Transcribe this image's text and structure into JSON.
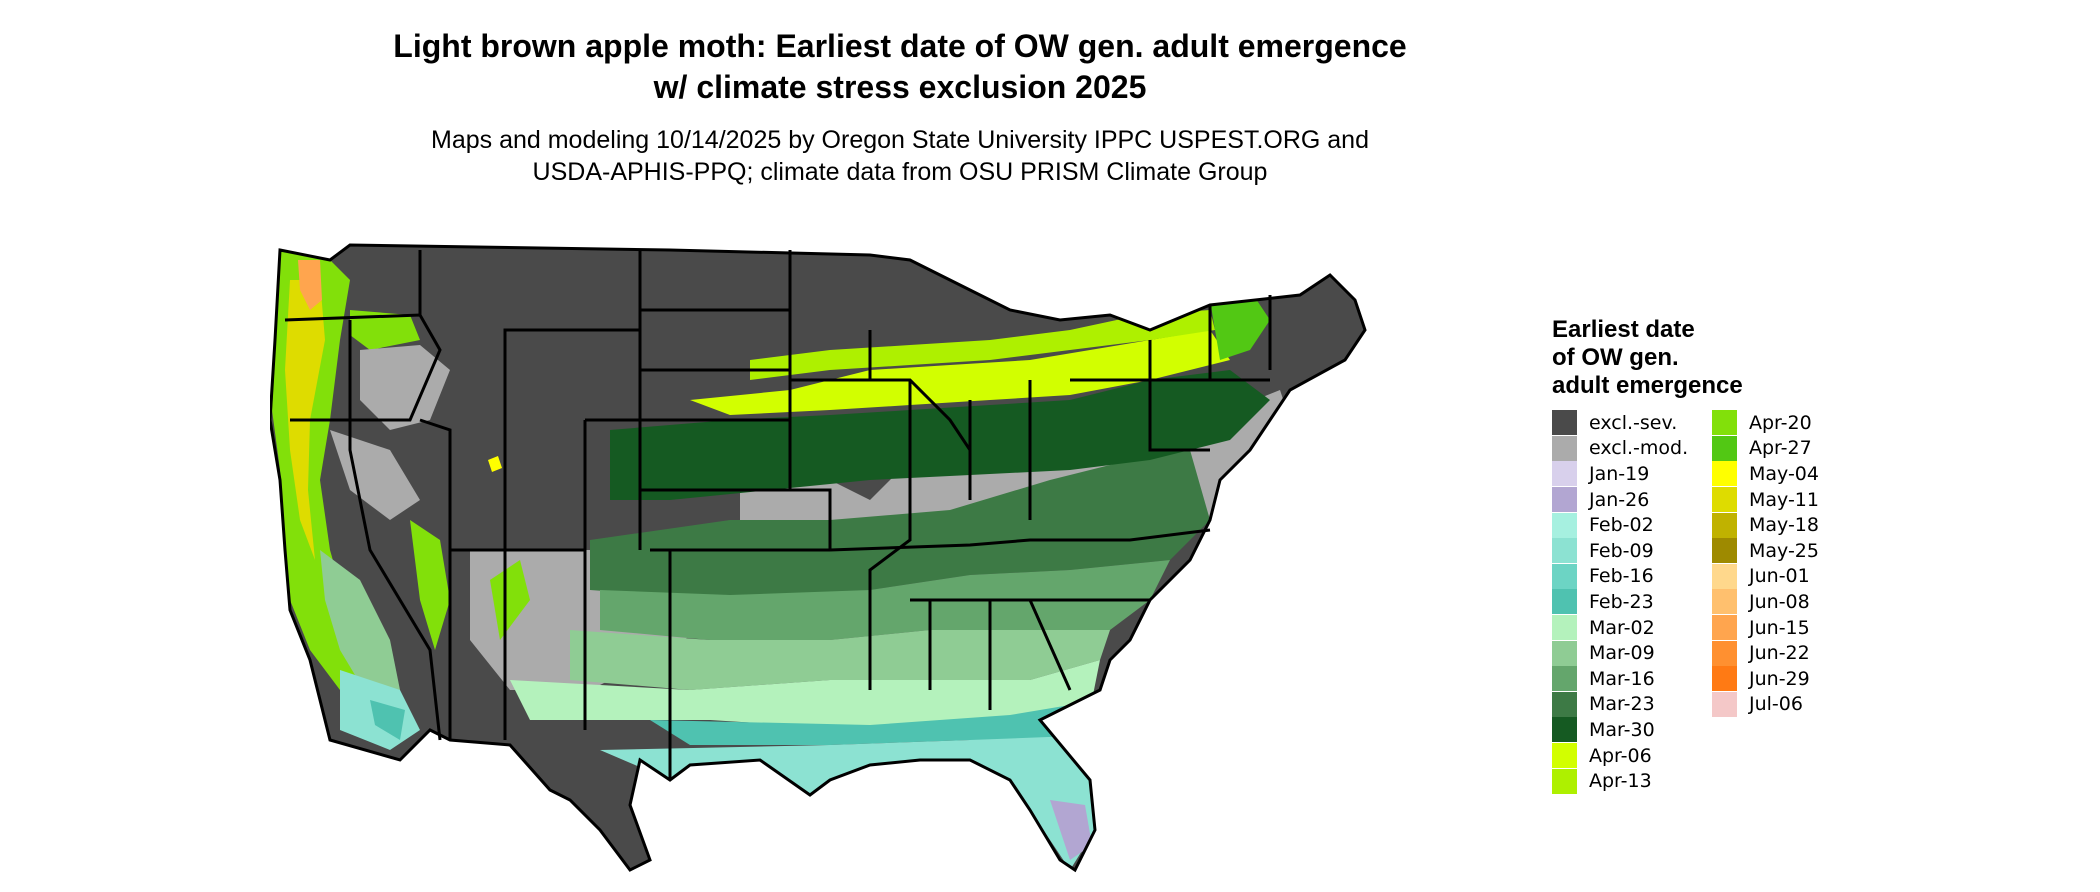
{
  "title": {
    "line1": "Light brown apple moth: Earliest date of OW gen. adult emergence",
    "line2": "w/ climate stress exclusion 2025"
  },
  "subtitle": {
    "line1": "Maps and modeling 10/14/2025 by Oregon State University IPPC USPEST.ORG and",
    "line2": "USDA-APHIS-PPQ; climate data from OSU PRISM Climate Group"
  },
  "legend": {
    "title_lines": [
      "Earliest date",
      "of OW gen.",
      "adult emergence"
    ],
    "column1": [
      {
        "label": "excl.-sev.",
        "color": "#4a4a4a"
      },
      {
        "label": "excl.-mod.",
        "color": "#ababab"
      },
      {
        "label": "Jan-19",
        "color": "#d8d0ec"
      },
      {
        "label": "Jan-26",
        "color": "#b2a6d2"
      },
      {
        "label": "Feb-02",
        "color": "#a6f0e0"
      },
      {
        "label": "Feb-09",
        "color": "#8ce2d2"
      },
      {
        "label": "Feb-16",
        "color": "#6cd4c4"
      },
      {
        "label": "Feb-23",
        "color": "#4fc2b0"
      },
      {
        "label": "Mar-02",
        "color": "#b4f2bc"
      },
      {
        "label": "Mar-09",
        "color": "#8fcc94"
      },
      {
        "label": "Mar-16",
        "color": "#64a66c"
      },
      {
        "label": "Mar-23",
        "color": "#3d7a45"
      },
      {
        "label": "Mar-30",
        "color": "#155a22"
      },
      {
        "label": "Apr-06",
        "color": "#d2ff00"
      },
      {
        "label": "Apr-13",
        "color": "#aef000"
      }
    ],
    "column2": [
      {
        "label": "Apr-20",
        "color": "#82e00a"
      },
      {
        "label": "Apr-27",
        "color": "#52c814"
      },
      {
        "label": "May-04",
        "color": "#ffff00"
      },
      {
        "label": "May-11",
        "color": "#dedc00"
      },
      {
        "label": "May-18",
        "color": "#c0b200"
      },
      {
        "label": "May-25",
        "color": "#9e8a00"
      },
      {
        "label": "Jun-01",
        "color": "#ffd88c"
      },
      {
        "label": "Jun-08",
        "color": "#ffc06e"
      },
      {
        "label": "Jun-15",
        "color": "#ffa54e"
      },
      {
        "label": "Jun-22",
        "color": "#ff9030"
      },
      {
        "label": "Jun-29",
        "color": "#ff7a14"
      },
      {
        "label": "Jul-06",
        "color": "#f4c8c8"
      }
    ]
  }
}
